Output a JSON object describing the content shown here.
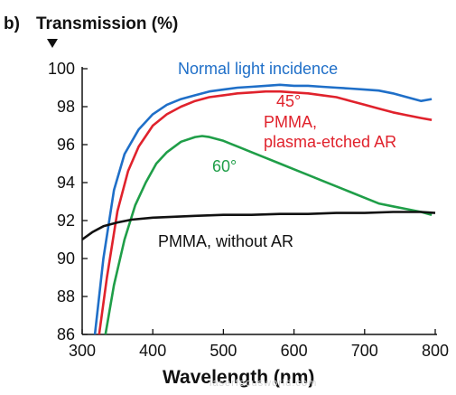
{
  "panel_label": "b)",
  "watermark": "laserfocusworld.com",
  "chart_data": {
    "type": "line",
    "ylabel": "Transmission (%)",
    "xlabel": "Wavelength (nm)",
    "xlim": [
      300,
      800
    ],
    "ylim": [
      86,
      100
    ],
    "x_ticks": [
      300,
      400,
      500,
      600,
      700,
      800
    ],
    "y_ticks": [
      86,
      88,
      90,
      92,
      94,
      96,
      98,
      100
    ],
    "grid": false,
    "legend": "none",
    "series": [
      {
        "name": "Normal light incidence",
        "color": "#1f6fc8",
        "x": [
          318,
          330,
          345,
          360,
          380,
          400,
          420,
          440,
          460,
          480,
          500,
          520,
          540,
          560,
          580,
          600,
          620,
          640,
          660,
          680,
          700,
          720,
          740,
          760,
          780,
          795
        ],
        "y": [
          86.0,
          90.0,
          93.6,
          95.5,
          96.8,
          97.6,
          98.1,
          98.4,
          98.6,
          98.8,
          98.9,
          99.0,
          99.05,
          99.1,
          99.15,
          99.1,
          99.1,
          99.05,
          99.0,
          98.95,
          98.9,
          98.85,
          98.7,
          98.5,
          98.3,
          98.4
        ]
      },
      {
        "name": "45° PMMA, plasma-etched AR",
        "label_lines": [
          "45°",
          "PMMA,",
          "plasma-etched AR"
        ],
        "color": "#e0222c",
        "x": [
          324,
          335,
          350,
          365,
          380,
          400,
          420,
          440,
          460,
          480,
          500,
          520,
          540,
          560,
          580,
          600,
          620,
          640,
          660,
          680,
          700,
          720,
          740,
          760,
          780,
          795
        ],
        "y": [
          86.0,
          89.0,
          92.5,
          94.6,
          95.9,
          97.0,
          97.6,
          98.0,
          98.3,
          98.5,
          98.6,
          98.7,
          98.75,
          98.8,
          98.8,
          98.75,
          98.7,
          98.6,
          98.5,
          98.3,
          98.1,
          97.9,
          97.7,
          97.55,
          97.4,
          97.3
        ]
      },
      {
        "name": "60°",
        "label_lines": [
          "60°"
        ],
        "color": "#1f9e48",
        "x": [
          333,
          345,
          360,
          375,
          390,
          405,
          420,
          440,
          460,
          470,
          480,
          500,
          520,
          540,
          560,
          580,
          600,
          620,
          640,
          660,
          680,
          700,
          720,
          740,
          760,
          780,
          795
        ],
        "y": [
          86.0,
          88.6,
          91.0,
          92.8,
          94.0,
          95.0,
          95.6,
          96.15,
          96.4,
          96.45,
          96.4,
          96.2,
          95.9,
          95.6,
          95.3,
          95.0,
          94.7,
          94.4,
          94.1,
          93.8,
          93.5,
          93.2,
          92.9,
          92.75,
          92.6,
          92.45,
          92.3
        ]
      },
      {
        "name": "PMMA, without AR",
        "label_lines": [
          "PMMA, without AR"
        ],
        "color": "#111111",
        "x": [
          300,
          315,
          330,
          350,
          370,
          400,
          430,
          460,
          500,
          540,
          580,
          620,
          660,
          700,
          740,
          780,
          800
        ],
        "y": [
          91.0,
          91.4,
          91.7,
          91.9,
          92.05,
          92.15,
          92.2,
          92.25,
          92.3,
          92.3,
          92.35,
          92.35,
          92.4,
          92.4,
          92.45,
          92.45,
          92.4
        ]
      }
    ]
  }
}
